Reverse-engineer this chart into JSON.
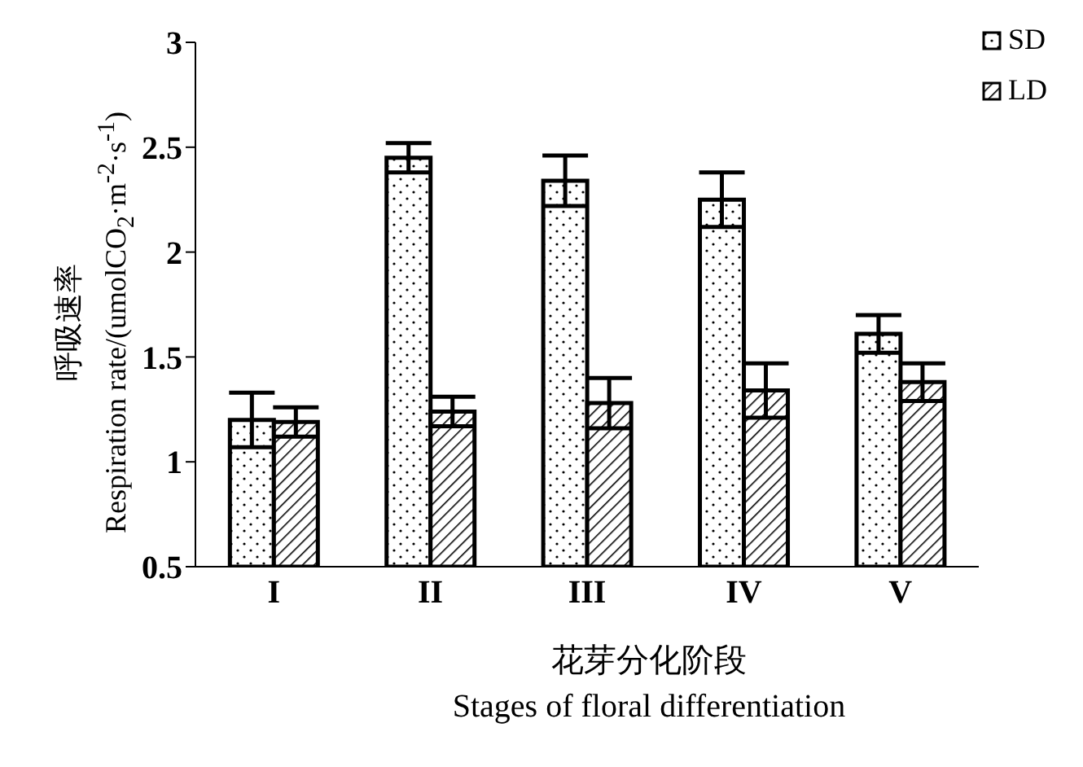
{
  "chart_data": {
    "type": "bar",
    "xlabel": "花芽分化阶段\nStages of floral differentiation",
    "ylabel": "呼吸速率\nRespiration rate/(umolCO$_{2}$·m$^{-2}$·s$^{-1}$)",
    "categories": [
      "I",
      "II",
      "III",
      "IV",
      "V"
    ],
    "series": [
      {
        "name": "SD",
        "color": "#000000",
        "values": [
          1.2,
          2.45,
          2.34,
          2.25,
          1.61
        ],
        "errors": [
          0.13,
          0.07,
          0.12,
          0.13,
          0.09
        ]
      },
      {
        "name": "LD",
        "color": "#000000",
        "values": [
          1.19,
          1.24,
          1.28,
          1.34,
          1.38
        ],
        "errors": [
          0.07,
          0.07,
          0.12,
          0.13,
          0.09
        ]
      }
    ],
    "ylim": [
      0.5,
      3
    ],
    "yticks": [
      0.5,
      1,
      1.5,
      2,
      2.5,
      3
    ],
    "grid": false,
    "legend": "top right"
  }
}
